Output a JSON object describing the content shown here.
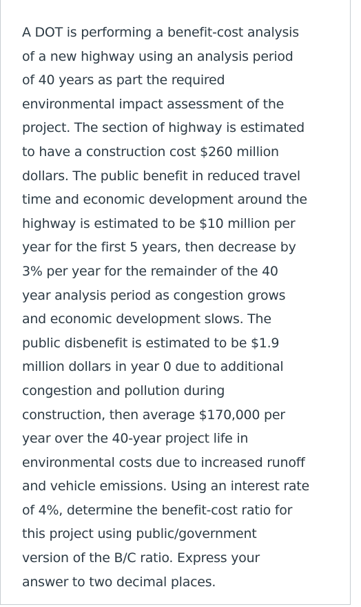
{
  "question": {
    "lines": [
      "A DOT is performing a benefit-cost analysis",
      "of a new highway using an analysis period",
      "of 40 years as part the required",
      "environmental impact assessment of the",
      "project. The section of highway is estimated",
      "to have a construction cost $260 million",
      "dollars. The public benefit in reduced travel",
      "time and economic development around the",
      "highway is estimated to be $10 million per",
      "year for the first 5 years, then decrease by",
      "3% per year for the remainder of the 40",
      "year analysis period as congestion grows",
      "and economic development slows. The",
      "public disbenefit is estimated to be $1.9",
      "million dollars in year 0 due to additional",
      "congestion and pollution during",
      "construction, then average $170,000 per",
      "year over the 40-year project life in",
      "environmental costs due to increased runoff",
      "and vehicle emissions. Using an interest rate",
      "of 4%, determine the benefit-cost ratio for",
      "this project using public/government",
      "version of the B/C ratio. Express your",
      "answer to two decimal places."
    ]
  }
}
